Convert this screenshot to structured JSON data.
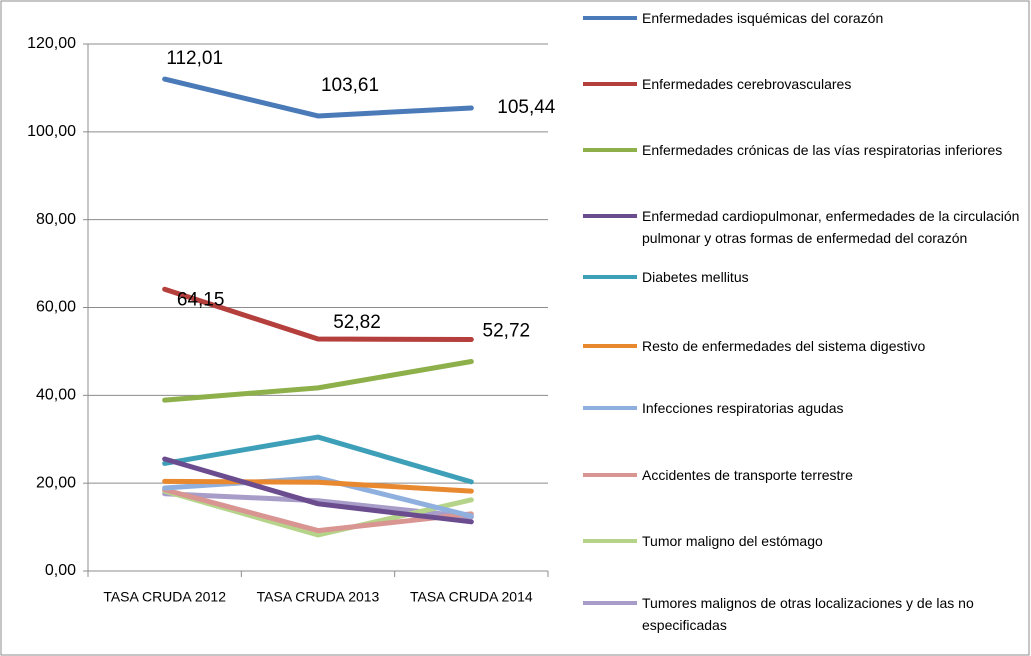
{
  "chart_data": {
    "type": "line",
    "categories": [
      "TASA CRUDA 2012",
      "TASA CRUDA 2013",
      "TASA CRUDA 2014"
    ],
    "ylim": [
      0,
      120
    ],
    "yticks": [
      {
        "value": 0,
        "label": "0,00"
      },
      {
        "value": 20,
        "label": "20,00"
      },
      {
        "value": 40,
        "label": "40,00"
      },
      {
        "value": 60,
        "label": "60,00"
      },
      {
        "value": 80,
        "label": "80,00"
      },
      {
        "value": 100,
        "label": "100,00"
      },
      {
        "value": 120,
        "label": "120,00"
      }
    ],
    "grid": true,
    "legend": "right",
    "series": [
      {
        "name": "Enfermedades isquémicas del corazón",
        "color": "#4a7ab8",
        "values": [
          112.01,
          103.61,
          105.44
        ],
        "value_labels": [
          "112,01",
          "103,61",
          "105,44"
        ]
      },
      {
        "name": "Enfermedades cerebrovasculares",
        "color": "#b43f3c",
        "values": [
          64.15,
          52.82,
          52.72
        ],
        "value_labels": [
          "64,15",
          "52,82",
          "52,72"
        ]
      },
      {
        "name": "Enfermedades crónicas de las vías respiratorias inferiores",
        "color": "#8db04a",
        "values": [
          38.9,
          41.7,
          47.7
        ]
      },
      {
        "name": "Enfermedad cardiopulmonar, enfermedades de la circulación pulmonar y otras formas de enfermedad del corazón",
        "color": "#6b4d8f",
        "values": [
          25.5,
          15.3,
          11.2
        ]
      },
      {
        "name": "Diabetes mellitus",
        "color": "#3ea0b8",
        "values": [
          24.5,
          30.5,
          20.3
        ]
      },
      {
        "name": "Resto de enfermedades del sistema digestivo",
        "color": "#e8882f",
        "values": [
          20.4,
          20.2,
          18.2
        ]
      },
      {
        "name": "Infecciones respiratorias agudas",
        "color": "#8fb0de",
        "values": [
          18.9,
          21.2,
          12.5
        ]
      },
      {
        "name": "Accidentes de transporte terrestre",
        "color": "#d99592",
        "values": [
          18.5,
          9.2,
          13.0
        ]
      },
      {
        "name": "Tumor maligno del estómago",
        "color": "#b5d48a",
        "values": [
          18.2,
          8.2,
          16.2
        ]
      },
      {
        "name": "Tumores malignos de otras localizaciones y de las no especificadas",
        "color": "#a89cc8",
        "values": [
          17.6,
          16.0,
          12.3
        ]
      }
    ]
  }
}
